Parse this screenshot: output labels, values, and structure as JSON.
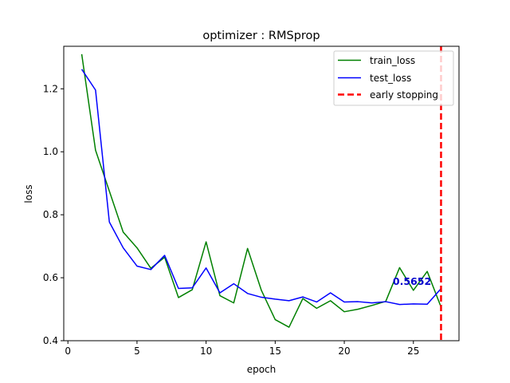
{
  "chart_data": {
    "type": "line",
    "title": "optimizer : RMSprop",
    "xlabel": "epoch",
    "ylabel": "loss",
    "xlim": [
      -0.3,
      28.3
    ],
    "ylim": [
      0.4,
      1.335
    ],
    "xticks": [
      0,
      5,
      10,
      15,
      20,
      25
    ],
    "yticks": [
      0.4,
      0.6,
      0.8,
      1.0,
      1.2
    ],
    "ytick_labels": [
      "0.4",
      "0.6",
      "0.8",
      "1.0",
      "1.2"
    ],
    "grid": false,
    "legend_position": "top-right",
    "x": [
      1,
      2,
      3,
      4,
      5,
      6,
      7,
      8,
      9,
      10,
      11,
      12,
      13,
      14,
      15,
      16,
      17,
      18,
      19,
      20,
      21,
      22,
      23,
      24,
      25,
      26,
      27
    ],
    "series": [
      {
        "name": "train_loss",
        "color": "#008000",
        "values": [
          1.31,
          1.005,
          0.875,
          0.745,
          0.695,
          0.63,
          0.665,
          0.537,
          0.562,
          0.714,
          0.543,
          0.52,
          0.693,
          0.56,
          0.467,
          0.443,
          0.534,
          0.503,
          0.527,
          0.492,
          0.5,
          0.512,
          0.525,
          0.632,
          0.56,
          0.62,
          0.507
        ]
      },
      {
        "name": "test_loss",
        "color": "#0000ff",
        "values": [
          1.262,
          1.196,
          0.777,
          0.695,
          0.637,
          0.626,
          0.671,
          0.566,
          0.568,
          0.631,
          0.552,
          0.581,
          0.55,
          0.538,
          0.532,
          0.527,
          0.539,
          0.523,
          0.552,
          0.523,
          0.524,
          0.52,
          0.524,
          0.515,
          0.517,
          0.516,
          0.5652
        ]
      }
    ],
    "vline": {
      "name": "early stopping",
      "x": 27,
      "color": "#ff0000"
    },
    "annotation": {
      "text": "0.5652",
      "x": 24.9,
      "y": 0.5895,
      "color": "#0000cc"
    }
  }
}
